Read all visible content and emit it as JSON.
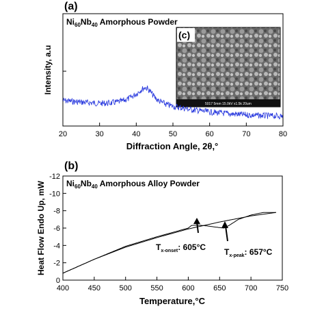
{
  "chart_data": [
    {
      "type": "line",
      "panel_label": "(a)",
      "title_parts": {
        "base1": "Ni",
        "sub1": "60",
        "base2": "Nb",
        "sub2": "40",
        "rest": " Amorphous Powder"
      },
      "xlabel": "Diffraction Angle, 2θ,°",
      "ylabel": "Intensity, a.u",
      "xlim": [
        20,
        80
      ],
      "xticks": [
        20,
        30,
        40,
        50,
        60,
        70,
        80
      ],
      "grid": false,
      "series": [
        {
          "color": "#2233dd",
          "x": [
            20,
            25,
            30,
            33,
            36,
            38,
            40,
            41,
            42,
            42.5,
            43,
            44,
            45,
            46,
            48,
            50,
            55,
            60,
            65,
            70,
            75,
            80
          ],
          "y": [
            0.42,
            0.38,
            0.35,
            0.36,
            0.4,
            0.47,
            0.58,
            0.66,
            0.72,
            0.74,
            0.72,
            0.62,
            0.5,
            0.42,
            0.33,
            0.28,
            0.2,
            0.14,
            0.1,
            0.07,
            0.05,
            0.04
          ]
        }
      ],
      "inset": {
        "label": "(c)",
        "caption": "SEM micrograph inset",
        "scale_text": "5017  5mm 15.0kV x1.5k   20um"
      }
    },
    {
      "type": "line",
      "panel_label": "(b)",
      "title_parts": {
        "base1": "Ni",
        "sub1": "60",
        "base2": "Nb",
        "sub2": "40",
        "rest": " Amorphous Alloy Powder"
      },
      "xlabel": "Temperature,°C",
      "ylabel": "Heat Flow Endo Up, mW",
      "xlim": [
        400,
        750
      ],
      "ylim": [
        0,
        -12
      ],
      "xticks": [
        400,
        450,
        500,
        550,
        600,
        650,
        700,
        750
      ],
      "yticks": [
        0,
        -2,
        -4,
        -6,
        -8,
        -10,
        -12
      ],
      "grid": false,
      "series": [
        {
          "color": "#000000",
          "x": [
            400,
            450,
            500,
            550,
            600,
            605,
            615,
            630,
            645,
            657,
            665,
            680,
            700,
            720,
            740
          ],
          "y": [
            -0.8,
            -2.4,
            -3.9,
            -5.0,
            -6.0,
            -6.3,
            -6.35,
            -6.25,
            -6.1,
            -6.0,
            -6.3,
            -7.0,
            -7.5,
            -7.8,
            -7.8
          ]
        },
        {
          "color": "#000000",
          "x": [
            400,
            450,
            500,
            550,
            600,
            650,
            700,
            740
          ],
          "y": [
            -0.8,
            -2.4,
            -3.8,
            -4.9,
            -5.9,
            -6.7,
            -7.4,
            -7.8
          ]
        }
      ],
      "annotations": [
        {
          "base": "T",
          "sub": "x-onset",
          "text": ": 605°C",
          "x": 605,
          "y": -6.3
        },
        {
          "base": "T",
          "sub": "x-peak",
          "text": ": 657°C",
          "x": 657,
          "y": -6.0
        }
      ]
    }
  ]
}
